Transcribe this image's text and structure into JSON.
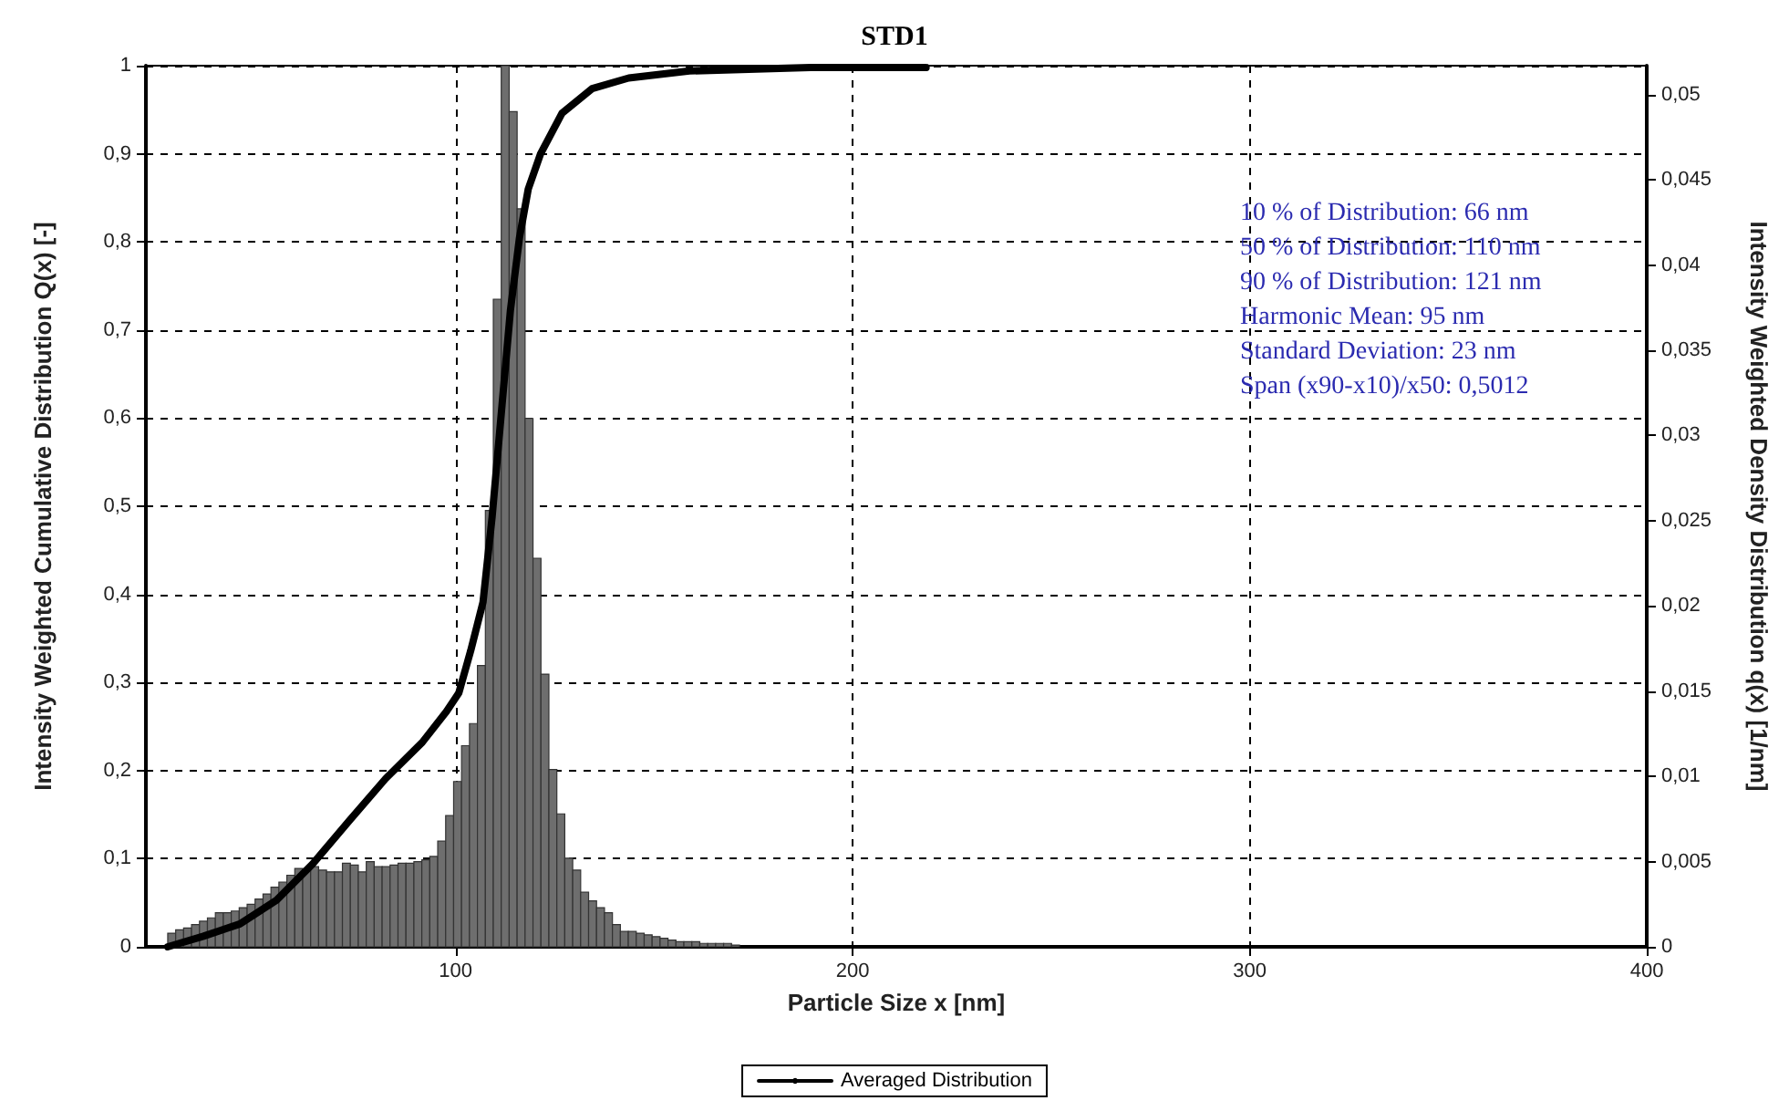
{
  "chart_data": {
    "type": "histogram",
    "title": "STD1",
    "xlabel": "Particle Size x [nm]",
    "ylabel": "Intensity Weighted Cumulative Distribution Q(x) [-]",
    "y2label": "Intensity Weighted Density Distribution q(x) [1/nm]",
    "annotations": [
      "10 % of Distribution: 66 nm",
      "50 % of Distribution: 110 nm",
      "90 % of Distribution: 121 nm",
      "Harmonic Mean: 95 nm",
      "Standard Deviation: 23 nm",
      "Span (x90-x10)/x50: 0,5012"
    ],
    "xlim": [
      22,
      400
    ],
    "xticks": [
      100,
      200,
      300,
      400
    ],
    "ylim": [
      0,
      1
    ],
    "yticks": [
      0,
      {
        "value": 0.1,
        "label": "0,1"
      },
      {
        "value": 0.2,
        "label": "0,2"
      },
      {
        "value": 0.3,
        "label": "0,3"
      },
      {
        "value": 0.4,
        "label": "0,4"
      },
      {
        "value": 0.5,
        "label": "0,5"
      },
      {
        "value": 0.6,
        "label": "0,6"
      },
      {
        "value": 0.7,
        "label": "0,7"
      },
      {
        "value": 0.8,
        "label": "0,8"
      },
      {
        "value": 0.9,
        "label": "0,9"
      },
      1
    ],
    "y2lim": [
      0,
      0.0517
    ],
    "y2ticks": [
      0,
      {
        "value": 0.005,
        "label": "0,005"
      },
      {
        "value": 0.01,
        "label": "0,01"
      },
      {
        "value": 0.015,
        "label": "0,015"
      },
      {
        "value": 0.02,
        "label": "0,02"
      },
      {
        "value": 0.025,
        "label": "0,025"
      },
      {
        "value": 0.03,
        "label": "0,03"
      },
      {
        "value": 0.035,
        "label": "0,035"
      },
      {
        "value": 0.04,
        "label": "0,04"
      },
      {
        "value": 0.045,
        "label": "0,045"
      },
      {
        "value": 0.05,
        "label": "0,05"
      }
    ],
    "grid": true,
    "legend": "bottom",
    "marker": "none",
    "line_style": "solid",
    "series": [
      {
        "axis": "y2",
        "color": "#6e6e6e",
        "bins": [
          27.5,
          29.5,
          31.5,
          33.5,
          35.5,
          37.5,
          39.5,
          41.5,
          43.5,
          45.5,
          47.5,
          49.5,
          51.5,
          53.5,
          55.5,
          57.5,
          59.5,
          61.5,
          63.5,
          65.5,
          67.5,
          69.5,
          71.5,
          73.5,
          75.5,
          77.5,
          79.5,
          81.5,
          83.5,
          85.5,
          87.5,
          89.5,
          91.5,
          93.5,
          95.5,
          97.5,
          99.5,
          101.5,
          103.5,
          105.5,
          107.5,
          109.5,
          111.5,
          113.5,
          115.5,
          117.5,
          119.5,
          121.5,
          123.5,
          125.5,
          127.5,
          129.5,
          131.5,
          133.5,
          135.5,
          137.5,
          139.5,
          141.5,
          143.5,
          145.5,
          147.5,
          149.5,
          151.5,
          153.5,
          155.5,
          157.5,
          159.5,
          161.5,
          163.5,
          165.5,
          167.5,
          169.5,
          171.5
        ],
        "values": [
          0.0008,
          0.001,
          0.0011,
          0.0013,
          0.0015,
          0.0017,
          0.002,
          0.002,
          0.0021,
          0.0023,
          0.0025,
          0.0028,
          0.0031,
          0.0035,
          0.0038,
          0.0042,
          0.0046,
          0.0045,
          0.0047,
          0.0045,
          0.0044,
          0.0044,
          0.0049,
          0.0048,
          0.0044,
          0.005,
          0.0047,
          0.0047,
          0.0048,
          0.0049,
          0.0049,
          0.005,
          0.0051,
          0.0053,
          0.0062,
          0.0077,
          0.0097,
          0.0118,
          0.0131,
          0.0165,
          0.0256,
          0.038,
          0.0517,
          0.049,
          0.0433,
          0.031,
          0.0228,
          0.016,
          0.0104,
          0.0078,
          0.0052,
          0.0045,
          0.0032,
          0.0027,
          0.0023,
          0.002,
          0.0013,
          0.0009,
          0.0009,
          0.0008,
          0.0007,
          0.0006,
          0.0005,
          0.0004,
          0.0003,
          0.0003,
          0.0003,
          0.0002,
          0.0002,
          0.0002,
          0.0002,
          0.0001
        ]
      },
      {
        "type": "line",
        "name": "Averaged Distribution",
        "color": "#000000",
        "x": [
          27.5,
          36.5,
          45.7,
          54.9,
          64,
          73.2,
          82.4,
          91.6,
          97.7,
          100.8,
          103.8,
          106.9,
          109.2,
          111.5,
          113.8,
          116.1,
          118.3,
          121.4,
          126.8,
          134.4,
          143.6,
          158.9,
          189.4,
          218.5
        ],
        "values": [
          0,
          0.012,
          0.026,
          0.053,
          0.094,
          0.143,
          0.191,
          0.232,
          0.267,
          0.288,
          0.336,
          0.391,
          0.488,
          0.605,
          0.722,
          0.805,
          0.86,
          0.9,
          0.946,
          0.974,
          0.986,
          0.994,
          0.998,
          0.998
        ]
      }
    ]
  }
}
